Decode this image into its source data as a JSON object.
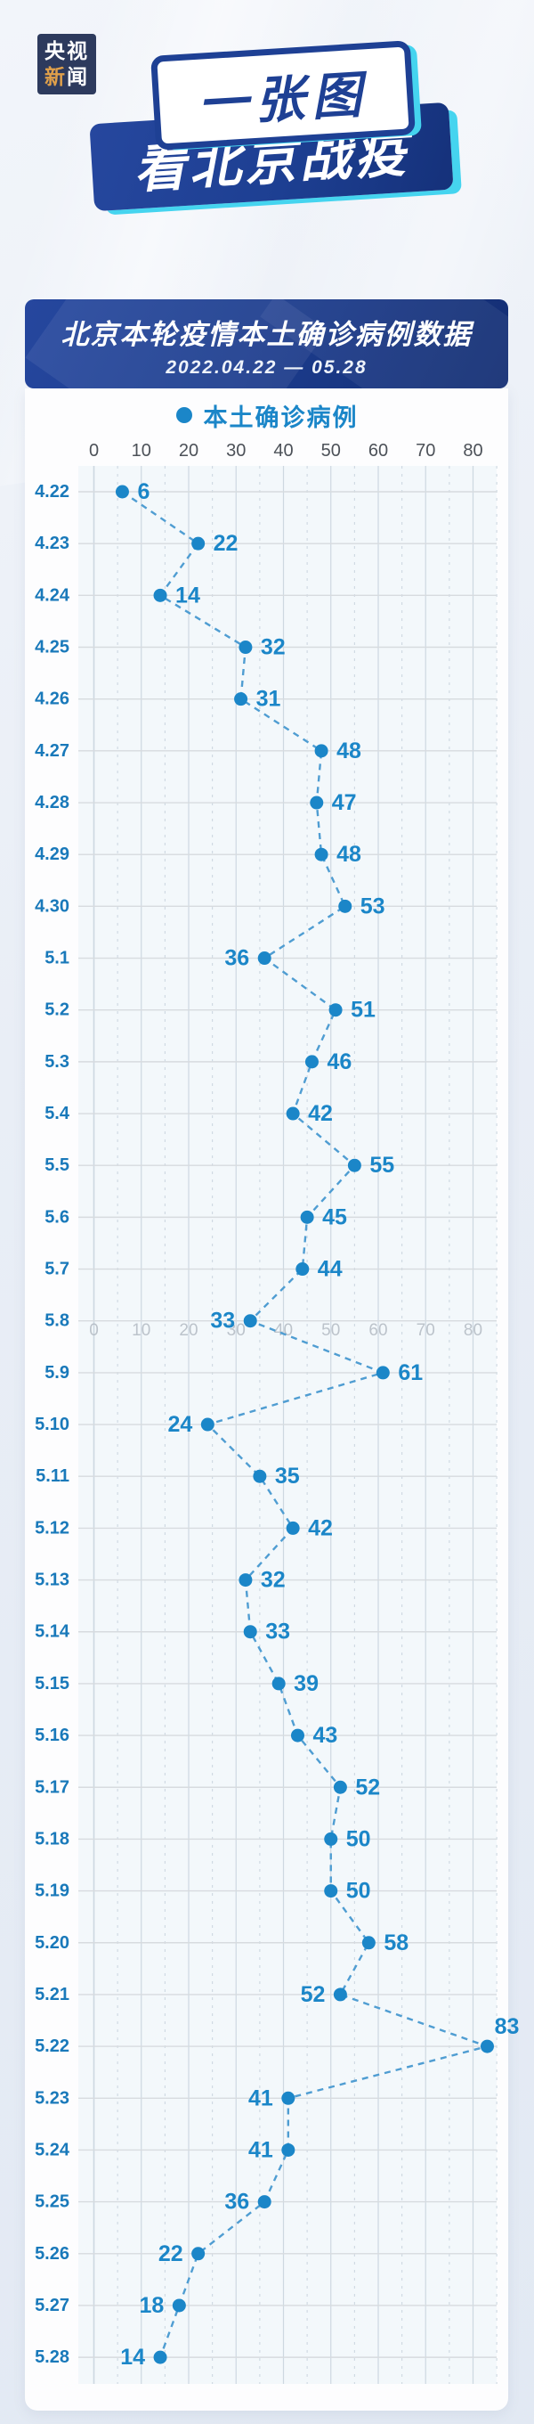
{
  "logo": {
    "line1": "央视",
    "line2_accent": "新",
    "line2_rest": "闻"
  },
  "badges": {
    "badge1": "一张图",
    "badge2": "看北京战疫"
  },
  "header": {
    "title": "北京本轮疫情本土确诊病例数据",
    "subtitle": "2022.04.22 — 05.28"
  },
  "legend": {
    "label": "本土确诊病例"
  },
  "colors": {
    "brand_navy": "#1e4094",
    "cyan_accent": "#45d4ef",
    "logo_bg": "#2d3a5d",
    "logo_orange": "#e0a04a",
    "point_blue": "#1b86c8",
    "date_blue": "#1979ba",
    "line_blue": "#4f9dd2",
    "plot_bg": "#f3f8fb",
    "grid_h": "#d7dbdf",
    "grid_v": "#cdd8e1",
    "axis_text": "#4c5158",
    "axis_text_mid": "#aab2bb"
  },
  "chart_data": {
    "type": "line",
    "subtype": "vertical-category-dot-plot",
    "series_name": "本土确诊病例",
    "title": "北京本轮疫情本土确诊病例数据",
    "date_range": "2022.04.22 — 05.28",
    "x_axis": {
      "ticks": [
        0,
        10,
        20,
        30,
        40,
        50,
        60,
        70,
        80
      ],
      "minor_step": 5,
      "range": [
        0,
        85
      ],
      "repeat_labels_below_category": "5.8"
    },
    "categories": [
      "4.22",
      "4.23",
      "4.24",
      "4.25",
      "4.26",
      "4.27",
      "4.28",
      "4.29",
      "4.30",
      "5.1",
      "5.2",
      "5.3",
      "5.4",
      "5.5",
      "5.6",
      "5.7",
      "5.8",
      "5.9",
      "5.10",
      "5.11",
      "5.12",
      "5.13",
      "5.14",
      "5.15",
      "5.16",
      "5.17",
      "5.18",
      "5.19",
      "5.20",
      "5.21",
      "5.22",
      "5.23",
      "5.24",
      "5.25",
      "5.26",
      "5.27",
      "5.28"
    ],
    "values": [
      6,
      22,
      14,
      32,
      31,
      48,
      47,
      48,
      53,
      36,
      51,
      46,
      42,
      55,
      45,
      44,
      33,
      61,
      24,
      35,
      42,
      32,
      33,
      39,
      43,
      52,
      50,
      50,
      58,
      52,
      83,
      41,
      41,
      36,
      22,
      18,
      14
    ],
    "label_sides": [
      "right",
      "right",
      "right",
      "right",
      "right",
      "right",
      "right",
      "right",
      "right",
      "left",
      "right",
      "right",
      "right",
      "right",
      "right",
      "right",
      "left",
      "right",
      "left",
      "right",
      "right",
      "right",
      "right",
      "right",
      "right",
      "right",
      "right",
      "right",
      "right",
      "left",
      "above",
      "left",
      "left",
      "left",
      "left",
      "left",
      "left"
    ],
    "line_style": "dashed",
    "grid": true,
    "legend_position": "top-center"
  }
}
